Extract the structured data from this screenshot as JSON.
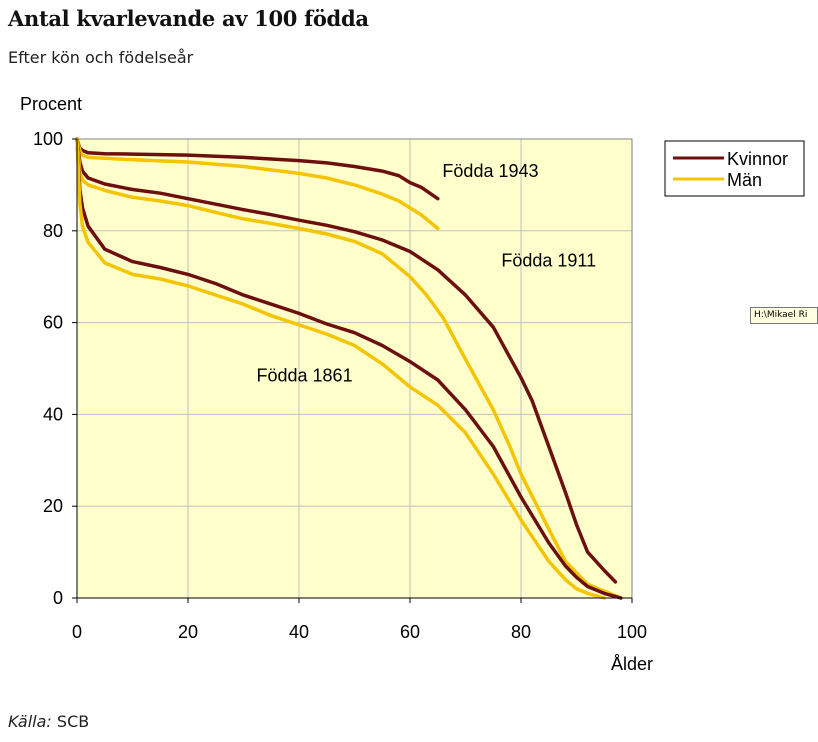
{
  "title": "Antal kvarlevande av 100 födda",
  "subtitle": "Efter kön och födelseår",
  "source": {
    "label": "Källa:",
    "value": "SCB"
  },
  "tooltip_text": "H:\\Mikael Ri",
  "colors": {
    "kvinnor": "#6e0f0f",
    "man": "#f5c400",
    "plot_bg": "#ffffcc",
    "grid": "#c0c0c0"
  },
  "chart_data": {
    "type": "line",
    "ylabel": "Procent",
    "xlabel": "Ålder",
    "xlim": [
      0,
      100
    ],
    "ylim": [
      0,
      100
    ],
    "xticks": [
      0,
      20,
      40,
      60,
      80,
      100
    ],
    "yticks": [
      0,
      20,
      40,
      60,
      80,
      100
    ],
    "grid": true,
    "legend": {
      "position": "top-right",
      "entries": [
        "Kvinnor",
        "Män"
      ]
    },
    "annotations": [
      {
        "text": "Födda 1943",
        "x": 74.5,
        "y": 93
      },
      {
        "text": "Födda 1911",
        "x": 85,
        "y": 73.5
      },
      {
        "text": "Födda 1861",
        "x": 41,
        "y": 48.5
      }
    ],
    "series": [
      {
        "name": "Kvinnor",
        "cohort": "Födda 1943",
        "color": "kvinnor",
        "x": [
          0,
          0.5,
          1,
          2,
          5,
          10,
          20,
          30,
          40,
          45,
          50,
          55,
          58,
          60,
          62,
          65
        ],
        "y": [
          100,
          98,
          97.5,
          97,
          96.8,
          96.7,
          96.5,
          96,
          95.3,
          94.8,
          94,
          93,
          92,
          90.5,
          89.5,
          87
        ]
      },
      {
        "name": "Män",
        "cohort": "Födda 1943",
        "color": "man",
        "x": [
          0,
          0.5,
          1,
          2,
          5,
          10,
          20,
          30,
          40,
          45,
          50,
          55,
          58,
          60,
          62,
          65
        ],
        "y": [
          100,
          97.5,
          96.5,
          96,
          95.8,
          95.5,
          95,
          94,
          92.5,
          91.5,
          90,
          88,
          86.5,
          85,
          83.5,
          80.5
        ]
      },
      {
        "name": "Kvinnor",
        "cohort": "Födda 1911",
        "color": "kvinnor",
        "x": [
          0,
          0.5,
          1,
          2,
          5,
          10,
          15,
          20,
          25,
          30,
          35,
          40,
          45,
          50,
          55,
          60,
          65,
          70,
          75,
          80,
          82,
          85,
          88,
          90,
          92,
          95,
          97
        ],
        "y": [
          100,
          95,
          93,
          91.5,
          90.2,
          89,
          88.2,
          87,
          85.8,
          84.6,
          83.5,
          82.3,
          81.2,
          79.8,
          78,
          75.5,
          71.5,
          66,
          59,
          48,
          43,
          33,
          23,
          16,
          10,
          6,
          3.5
        ]
      },
      {
        "name": "Män",
        "cohort": "Födda 1911",
        "color": "man",
        "x": [
          0,
          0.5,
          1,
          2,
          5,
          10,
          15,
          20,
          25,
          30,
          35,
          40,
          45,
          50,
          55,
          60,
          63,
          66,
          70,
          75,
          78,
          80,
          85,
          88,
          90,
          92,
          95,
          98
        ],
        "y": [
          100,
          93,
          91,
          90,
          88.8,
          87.3,
          86.5,
          85.5,
          84,
          82.6,
          81.6,
          80.5,
          79.3,
          77.7,
          75,
          70,
          66,
          61,
          52,
          41,
          33,
          27,
          15,
          8,
          5.5,
          3,
          1.5,
          0
        ]
      },
      {
        "name": "Kvinnor",
        "cohort": "Födda 1861",
        "color": "kvinnor",
        "x": [
          0,
          0.5,
          1,
          2,
          5,
          10,
          15,
          20,
          25,
          30,
          35,
          40,
          45,
          50,
          55,
          60,
          65,
          70,
          75,
          80,
          85,
          88,
          90,
          92,
          95,
          98
        ],
        "y": [
          100,
          89,
          85,
          81,
          76,
          73.3,
          72,
          70.5,
          68.5,
          66,
          64,
          62,
          59.7,
          57.8,
          55,
          51.5,
          47.5,
          41,
          33,
          22,
          12,
          7,
          4.5,
          2.5,
          1,
          0
        ]
      },
      {
        "name": "Män",
        "cohort": "Födda 1861",
        "color": "man",
        "x": [
          0,
          0.5,
          1,
          2,
          5,
          10,
          15,
          20,
          25,
          30,
          35,
          40,
          45,
          50,
          55,
          60,
          65,
          70,
          75,
          80,
          85,
          88,
          90,
          92,
          95
        ],
        "y": [
          100,
          86,
          81,
          77.5,
          73,
          70.5,
          69.5,
          68,
          66,
          64,
          61.5,
          59.5,
          57.5,
          55,
          51,
          46,
          42,
          36,
          27,
          17,
          8,
          4,
          2,
          1,
          0
        ]
      }
    ]
  }
}
